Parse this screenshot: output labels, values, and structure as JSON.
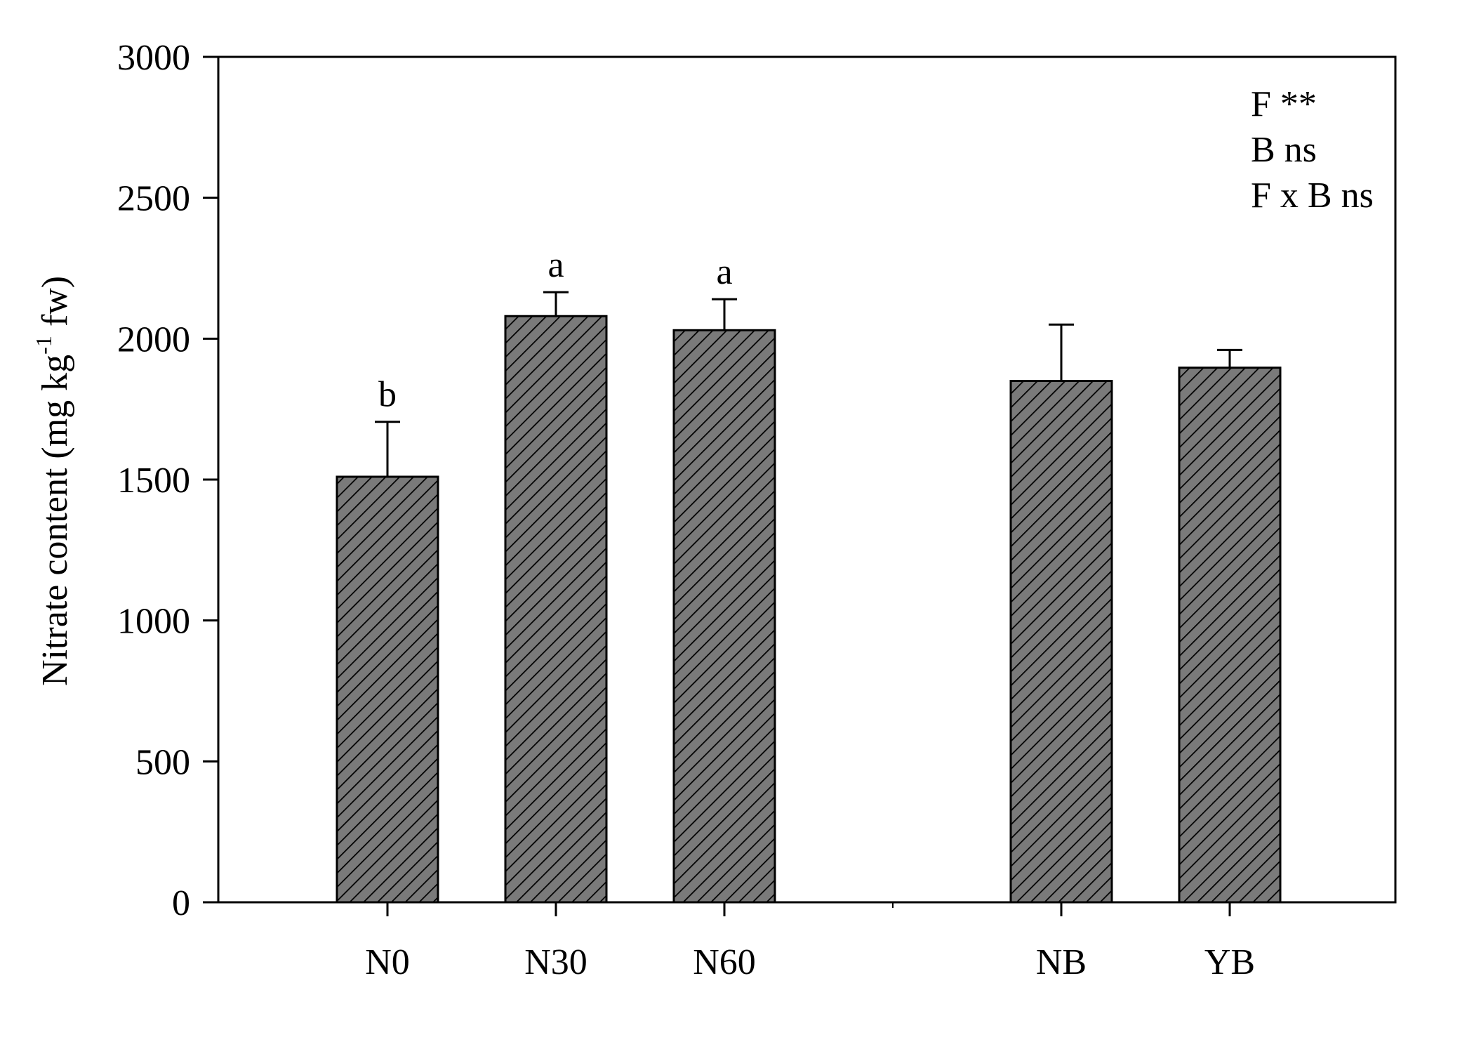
{
  "chart_data": {
    "type": "bar",
    "ylabel": {
      "main": "Nitrate content (mg kg",
      "sup": "-1",
      "tail": " fw)"
    },
    "ylim": [
      0,
      3000
    ],
    "yticks": [
      0,
      500,
      1000,
      1500,
      2000,
      2500,
      3000
    ],
    "grid": false,
    "bar_color": "#7a7a7a",
    "hatch": "diagonal",
    "groups": [
      {
        "categories": [
          "N0",
          "N30",
          "N60"
        ]
      },
      {
        "categories": [
          "NB",
          "YB"
        ]
      }
    ],
    "bars": [
      {
        "category": "N0",
        "value": 1510,
        "error": 195,
        "sig": "b"
      },
      {
        "category": "N30",
        "value": 2080,
        "error": 85,
        "sig": "a"
      },
      {
        "category": "N60",
        "value": 2030,
        "error": 110,
        "sig": "a"
      },
      {
        "category": "NB",
        "value": 1850,
        "error": 200,
        "sig": ""
      },
      {
        "category": "YB",
        "value": 1897,
        "error": 63,
        "sig": ""
      }
    ],
    "annotations": [
      "F **",
      "B ns",
      "F x B ns"
    ]
  }
}
